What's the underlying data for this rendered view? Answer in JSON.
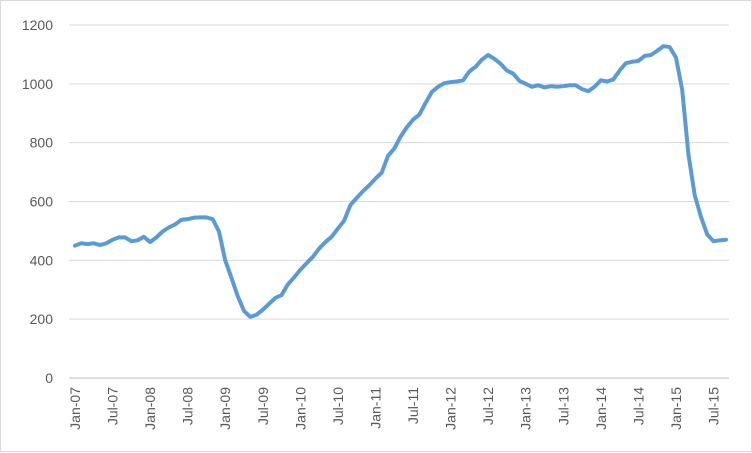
{
  "chart_data": {
    "type": "line",
    "title": "",
    "xlabel": "",
    "ylabel": "",
    "ylim": [
      0,
      1200
    ],
    "yticks": [
      "0",
      "200",
      "400",
      "600",
      "800",
      "1000",
      "1200"
    ],
    "xticks": [
      "Jan-07",
      "Jul-07",
      "Jan-08",
      "Jul-08",
      "Jan-09",
      "Jul-09",
      "Jan-10",
      "Jul-10",
      "Jan-11",
      "Jul-11",
      "Jan-12",
      "Jul-12",
      "Jan-13",
      "Jul-13",
      "Jan-14",
      "Jul-14",
      "Jan-15",
      "Jul-15"
    ],
    "grid": true,
    "legend": "none",
    "colors": {
      "line": "#5b9bd5",
      "grid": "#d9d9d9",
      "text": "#595959"
    },
    "series": [
      {
        "values": [
          450,
          458,
          455,
          458,
          452,
          458,
          470,
          478,
          478,
          465,
          468,
          480,
          462,
          478,
          498,
          512,
          522,
          538,
          540,
          545,
          546,
          546,
          540,
          498,
          400,
          340,
          278,
          228,
          208,
          215,
          232,
          252,
          272,
          282,
          318,
          342,
          368,
          390,
          412,
          440,
          462,
          480,
          508,
          535,
          588,
          612,
          635,
          655,
          678,
          698,
          755,
          780,
          820,
          852,
          878,
          895,
          935,
          972,
          990,
          1002,
          1006,
          1008,
          1012,
          1042,
          1058,
          1082,
          1098,
          1085,
          1068,
          1045,
          1035,
          1010,
          1000,
          990,
          995,
          988,
          992,
          990,
          992,
          995,
          995,
          982,
          975,
          990,
          1012,
          1008,
          1015,
          1045,
          1070,
          1075,
          1078,
          1095,
          1098,
          1112,
          1128,
          1125,
          1090,
          980,
          760,
          622,
          548,
          488,
          465,
          468,
          470
        ]
      }
    ]
  }
}
